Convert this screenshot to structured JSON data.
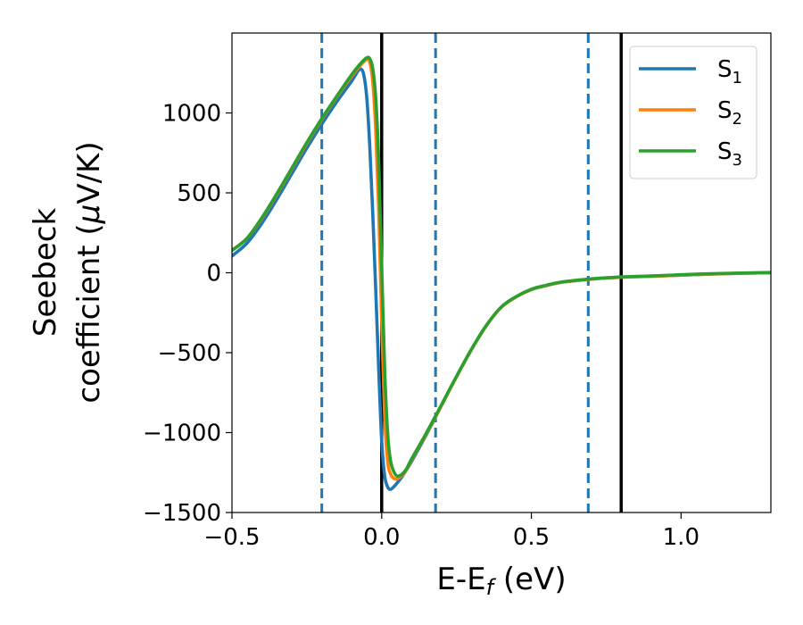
{
  "chart_data": {
    "type": "line",
    "title": "",
    "xlabel": "E-E",
    "xlabel_sub": "f",
    "xlabel_suffix": " (eV)",
    "ylabel_line1": "Seebeck",
    "ylabel_line2_pre": "coefficient  (",
    "ylabel_mu": "μ",
    "ylabel_line2_post": "V/K)",
    "xlim": [
      -0.5,
      1.3
    ],
    "ylim": [
      -1500,
      1500
    ],
    "xticks": [
      -0.5,
      0.0,
      0.5,
      1.0
    ],
    "xtick_labels": [
      "−0.5",
      "0.0",
      "0.5",
      "1.0"
    ],
    "yticks": [
      -1500,
      -1000,
      -500,
      0,
      500,
      1000
    ],
    "ytick_labels": [
      "−1500",
      "−1000",
      "−500",
      "0",
      "500",
      "1000"
    ],
    "grid": false,
    "legend_position": "top-right",
    "series": [
      {
        "name": "S1",
        "label_main": "S",
        "label_sub": "1",
        "color": "#1f77b4",
        "points": [
          [
            -0.5,
            105
          ],
          [
            -0.45,
            185
          ],
          [
            -0.4,
            310
          ],
          [
            -0.35,
            460
          ],
          [
            -0.3,
            620
          ],
          [
            -0.25,
            780
          ],
          [
            -0.2,
            930
          ],
          [
            -0.15,
            1070
          ],
          [
            -0.1,
            1200
          ],
          [
            -0.08,
            1260
          ],
          [
            -0.07,
            1275
          ],
          [
            -0.06,
            1240
          ],
          [
            -0.05,
            1100
          ],
          [
            -0.04,
            800
          ],
          [
            -0.03,
            380
          ],
          [
            -0.02,
            -100
          ],
          [
            -0.01,
            -600
          ],
          [
            0.0,
            -1050
          ],
          [
            0.01,
            -1270
          ],
          [
            0.02,
            -1340
          ],
          [
            0.03,
            -1355
          ],
          [
            0.045,
            -1330
          ],
          [
            0.07,
            -1270
          ],
          [
            0.1,
            -1180
          ],
          [
            0.15,
            -1010
          ],
          [
            0.2,
            -830
          ],
          [
            0.25,
            -650
          ],
          [
            0.3,
            -480
          ],
          [
            0.35,
            -330
          ],
          [
            0.4,
            -215
          ],
          [
            0.45,
            -150
          ],
          [
            0.5,
            -105
          ],
          [
            0.55,
            -80
          ],
          [
            0.6,
            -60
          ],
          [
            0.7,
            -40
          ],
          [
            0.8,
            -28
          ],
          [
            0.9,
            -22
          ],
          [
            1.0,
            -15
          ],
          [
            1.1,
            -8
          ],
          [
            1.2,
            -3
          ],
          [
            1.3,
            0
          ]
        ]
      },
      {
        "name": "S2",
        "label_main": "S",
        "label_sub": "2",
        "color": "#ff7f0e",
        "points": [
          [
            -0.5,
            140
          ],
          [
            -0.45,
            215
          ],
          [
            -0.4,
            340
          ],
          [
            -0.35,
            490
          ],
          [
            -0.3,
            650
          ],
          [
            -0.25,
            810
          ],
          [
            -0.2,
            960
          ],
          [
            -0.15,
            1100
          ],
          [
            -0.1,
            1230
          ],
          [
            -0.07,
            1300
          ],
          [
            -0.05,
            1335
          ],
          [
            -0.04,
            1320
          ],
          [
            -0.03,
            1200
          ],
          [
            -0.02,
            900
          ],
          [
            -0.01,
            400
          ],
          [
            0.0,
            -300
          ],
          [
            0.01,
            -900
          ],
          [
            0.02,
            -1180
          ],
          [
            0.03,
            -1260
          ],
          [
            0.045,
            -1290
          ],
          [
            0.06,
            -1280
          ],
          [
            0.08,
            -1240
          ],
          [
            0.1,
            -1170
          ],
          [
            0.15,
            -1005
          ],
          [
            0.2,
            -830
          ],
          [
            0.25,
            -650
          ],
          [
            0.3,
            -480
          ],
          [
            0.35,
            -330
          ],
          [
            0.4,
            -215
          ],
          [
            0.45,
            -150
          ],
          [
            0.5,
            -105
          ],
          [
            0.55,
            -80
          ],
          [
            0.6,
            -60
          ],
          [
            0.7,
            -40
          ],
          [
            0.8,
            -28
          ],
          [
            0.9,
            -22
          ],
          [
            1.0,
            -15
          ],
          [
            1.1,
            -8
          ],
          [
            1.2,
            -3
          ],
          [
            1.3,
            0
          ]
        ]
      },
      {
        "name": "S3",
        "label_main": "S",
        "label_sub": "3",
        "color": "#2ca02c",
        "points": [
          [
            -0.5,
            140
          ],
          [
            -0.45,
            215
          ],
          [
            -0.4,
            345
          ],
          [
            -0.35,
            495
          ],
          [
            -0.3,
            655
          ],
          [
            -0.25,
            815
          ],
          [
            -0.2,
            965
          ],
          [
            -0.15,
            1105
          ],
          [
            -0.1,
            1240
          ],
          [
            -0.07,
            1310
          ],
          [
            -0.05,
            1345
          ],
          [
            -0.04,
            1340
          ],
          [
            -0.03,
            1280
          ],
          [
            -0.02,
            1100
          ],
          [
            -0.01,
            700
          ],
          [
            0.0,
            50
          ],
          [
            0.01,
            -600
          ],
          [
            0.02,
            -1000
          ],
          [
            0.03,
            -1180
          ],
          [
            0.045,
            -1260
          ],
          [
            0.06,
            -1270
          ],
          [
            0.08,
            -1235
          ],
          [
            0.1,
            -1165
          ],
          [
            0.15,
            -1000
          ],
          [
            0.2,
            -825
          ],
          [
            0.25,
            -648
          ],
          [
            0.3,
            -478
          ],
          [
            0.35,
            -328
          ],
          [
            0.4,
            -213
          ],
          [
            0.45,
            -148
          ],
          [
            0.5,
            -103
          ],
          [
            0.55,
            -78
          ],
          [
            0.6,
            -58
          ],
          [
            0.7,
            -38
          ],
          [
            0.8,
            -26
          ],
          [
            0.9,
            -20
          ],
          [
            1.0,
            -12
          ],
          [
            1.1,
            -6
          ],
          [
            1.2,
            -2
          ],
          [
            1.3,
            2
          ]
        ]
      }
    ],
    "vertical_lines": [
      {
        "x": -0.2,
        "style": "dashed",
        "color": "#1f77b4"
      },
      {
        "x": 0.0,
        "style": "solid",
        "color": "#000000"
      },
      {
        "x": 0.18,
        "style": "dashed",
        "color": "#1f77b4"
      },
      {
        "x": 0.69,
        "style": "dashed",
        "color": "#1f77b4"
      },
      {
        "x": 0.8,
        "style": "solid",
        "color": "#000000"
      }
    ]
  }
}
